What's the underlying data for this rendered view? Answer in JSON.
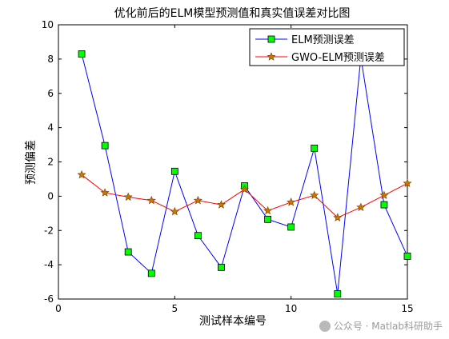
{
  "chart_data": {
    "type": "line",
    "title": "优化前后的ELM模型预测值和真实值误差对比图",
    "xlabel": "测试样本编号",
    "ylabel": "预测偏差",
    "xlim": [
      0,
      15
    ],
    "ylim": [
      -6,
      10
    ],
    "xticks": [
      0,
      5,
      10,
      15
    ],
    "yticks": [
      -6,
      -4,
      -2,
      0,
      2,
      4,
      6,
      8,
      10
    ],
    "grid": false,
    "legend_position": "top-right",
    "x": [
      1,
      2,
      3,
      4,
      5,
      6,
      7,
      8,
      9,
      10,
      11,
      12,
      13,
      14,
      15
    ],
    "series": [
      {
        "name": "ELM预测误差",
        "color": "#0000ff",
        "marker": "square",
        "marker_fill": "#00ff00",
        "values": [
          8.3,
          2.95,
          -3.25,
          -4.5,
          1.45,
          -2.3,
          -4.15,
          0.6,
          -1.35,
          -1.8,
          2.8,
          -5.7,
          8.1,
          -0.5,
          -3.5
        ]
      },
      {
        "name": "GWO-ELM预测误差",
        "color": "#ff0000",
        "marker": "star",
        "marker_fill": "#c87800",
        "values": [
          1.25,
          0.2,
          -0.05,
          -0.25,
          -0.9,
          -0.25,
          -0.5,
          0.4,
          -0.85,
          -0.35,
          0.05,
          -1.25,
          -0.65,
          0.05,
          0.75
        ]
      }
    ]
  },
  "watermark": {
    "text": "公众号 · Matlab科研助手"
  }
}
